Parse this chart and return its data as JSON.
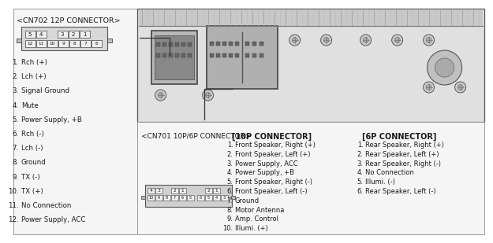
{
  "bg_color": "#ffffff",
  "text_color": "#1a1a1a",
  "cn702_title": "<CN702 12P CONNECTOR>",
  "cn702_list": [
    [
      "1.",
      "Rch (+)"
    ],
    [
      "2.",
      "Lch (+)"
    ],
    [
      "3.",
      "Signal Ground"
    ],
    [
      "4.",
      "Mute"
    ],
    [
      "5.",
      "Power Supply, +B"
    ],
    [
      "6.",
      "Rch (-)"
    ],
    [
      "7.",
      "Lch (-)"
    ],
    [
      "8.",
      "Ground"
    ],
    [
      "9.",
      "TX (-)"
    ],
    [
      "10.",
      "TX (+)"
    ],
    [
      "11.",
      "No Connection"
    ],
    [
      "12.",
      "Power Supply, ACC"
    ]
  ],
  "cn701_title": "<CN701 10P/6P CONNECTOR>",
  "conn10p_title": "[10P CONNECTOR]",
  "conn10p_list": [
    [
      "1.",
      "Front Speaker, Right (+)"
    ],
    [
      "2.",
      "Front Speaker, Left (+)"
    ],
    [
      "3.",
      "Power Supply, ACC"
    ],
    [
      "4.",
      "Power Supply, +B"
    ],
    [
      "5.",
      "Front Speaker, Right (-)"
    ],
    [
      "6.",
      "Front Speaker, Left (-)"
    ],
    [
      "7.",
      "Ground"
    ],
    [
      "8.",
      "Motor Antenna"
    ],
    [
      "9.",
      "Amp. Control"
    ],
    [
      "10.",
      "Illumi. (+)"
    ]
  ],
  "conn6p_title": "[6P CONNECTOR]",
  "conn6p_list": [
    [
      "1.",
      "Rear Speaker, Right (+)"
    ],
    [
      "2.",
      "Rear Speaker, Left (+)"
    ],
    [
      "3.",
      "Rear Speaker, Right (-)"
    ],
    [
      "4.",
      "No Connection"
    ],
    [
      "5.",
      "Illumi. (-)"
    ],
    [
      "6.",
      "Rear Speaker, Left (-)"
    ]
  ],
  "cn702_top_pins": [
    "5",
    "4",
    "",
    "3",
    "2",
    "1"
  ],
  "cn702_bot_pins": [
    "12",
    "11",
    "10",
    "9",
    "8",
    "7",
    "6"
  ],
  "cn701_top_10p": [
    "4",
    "3",
    "",
    "2",
    "1"
  ],
  "cn701_bot_10p": [
    "10",
    "9",
    "8",
    "7",
    "6",
    "5"
  ],
  "cn701_top_6p": [
    "",
    "2",
    "1"
  ],
  "cn701_bot_6p": [
    "6",
    "5",
    "4",
    "3"
  ]
}
